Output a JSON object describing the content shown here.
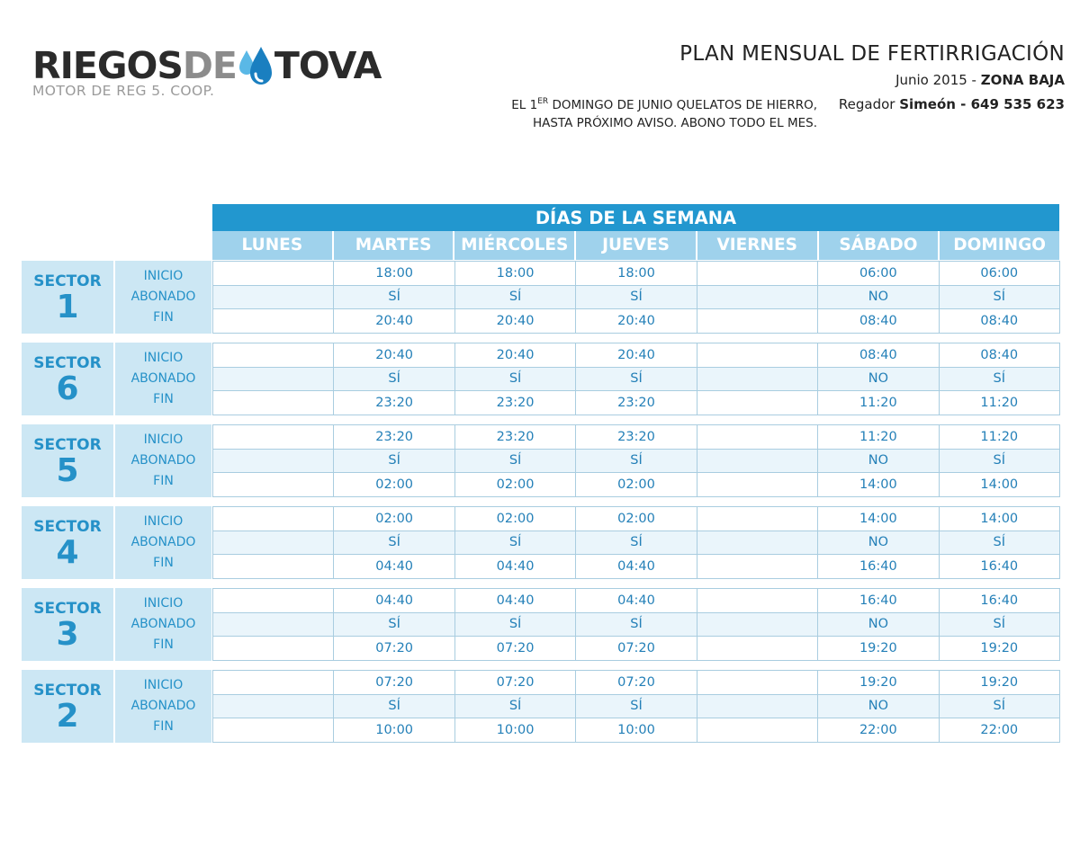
{
  "logo": {
    "part1": "RIEGOS",
    "part2": "DE",
    "part3": "TOVA",
    "subtitle": "MOTOR DE REG 5. COOP.",
    "drop_icon": "water-drop-icon",
    "colors": {
      "dark": "#2b2b2b",
      "grey": "#8c8c8c",
      "drop_dark": "#1a7fc0",
      "drop_light": "#5ab8e6"
    }
  },
  "header": {
    "title": "PLAN MENSUAL DE FERTIRRIGACIÓN",
    "date": "Junio 2015 - ",
    "zone": "ZONA BAJA",
    "irrigator_label": "Regador ",
    "irrigator_name": "Simeón - 649 535 623",
    "note_part1": "EL 1",
    "note_sup": "ER",
    "note_part2": " DOMINGO DE JUNIO QUELATOS DE HIERRO,",
    "note_line2": "HASTA PRÓXIMO AVISO. ABONO TODO EL MES."
  },
  "table": {
    "title": "DÍAS DE LA SEMANA",
    "days": [
      "LUNES",
      "MARTES",
      "MIÉRCOLES",
      "JUEVES",
      "VIERNES",
      "SÁBADO",
      "DOMINGO"
    ],
    "sector_word": "SECTOR",
    "row_labels": [
      "INICIO",
      "ABONADO",
      "FIN"
    ],
    "colors": {
      "header": "#2297cf",
      "days_bg": "#9fd2ec",
      "label_bg": "#cce7f4",
      "text": "#2480b8"
    },
    "sectors": [
      {
        "number": "1",
        "rows": [
          [
            "",
            "18:00",
            "18:00",
            "18:00",
            "",
            "06:00",
            "06:00"
          ],
          [
            "",
            "SÍ",
            "SÍ",
            "SÍ",
            "",
            "NO",
            "SÍ"
          ],
          [
            "",
            "20:40",
            "20:40",
            "20:40",
            "",
            "08:40",
            "08:40"
          ]
        ]
      },
      {
        "number": "6",
        "rows": [
          [
            "",
            "20:40",
            "20:40",
            "20:40",
            "",
            "08:40",
            "08:40"
          ],
          [
            "",
            "SÍ",
            "SÍ",
            "SÍ",
            "",
            "NO",
            "SÍ"
          ],
          [
            "",
            "23:20",
            "23:20",
            "23:20",
            "",
            "11:20",
            "11:20"
          ]
        ]
      },
      {
        "number": "5",
        "rows": [
          [
            "",
            "23:20",
            "23:20",
            "23:20",
            "",
            "11:20",
            "11:20"
          ],
          [
            "",
            "SÍ",
            "SÍ",
            "SÍ",
            "",
            "NO",
            "SÍ"
          ],
          [
            "",
            "02:00",
            "02:00",
            "02:00",
            "",
            "14:00",
            "14:00"
          ]
        ]
      },
      {
        "number": "4",
        "rows": [
          [
            "",
            "02:00",
            "02:00",
            "02:00",
            "",
            "14:00",
            "14:00"
          ],
          [
            "",
            "SÍ",
            "SÍ",
            "SÍ",
            "",
            "NO",
            "SÍ"
          ],
          [
            "",
            "04:40",
            "04:40",
            "04:40",
            "",
            "16:40",
            "16:40"
          ]
        ]
      },
      {
        "number": "3",
        "rows": [
          [
            "",
            "04:40",
            "04:40",
            "04:40",
            "",
            "16:40",
            "16:40"
          ],
          [
            "",
            "SÍ",
            "SÍ",
            "SÍ",
            "",
            "NO",
            "SÍ"
          ],
          [
            "",
            "07:20",
            "07:20",
            "07:20",
            "",
            "19:20",
            "19:20"
          ]
        ]
      },
      {
        "number": "2",
        "rows": [
          [
            "",
            "07:20",
            "07:20",
            "07:20",
            "",
            "19:20",
            "19:20"
          ],
          [
            "",
            "SÍ",
            "SÍ",
            "SÍ",
            "",
            "NO",
            "SÍ"
          ],
          [
            "",
            "10:00",
            "10:00",
            "10:00",
            "",
            "22:00",
            "22:00"
          ]
        ]
      }
    ]
  }
}
